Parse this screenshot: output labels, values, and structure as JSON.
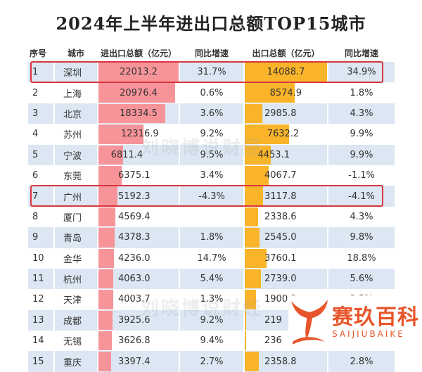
{
  "chart_data": {
    "type": "table",
    "title": "2024年上半年进出口总额TOP15城市",
    "columns": [
      "序号",
      "城市",
      "进出口总额（亿元）",
      "同比增速",
      "出口总额（亿元）",
      "同比增速"
    ],
    "rows": [
      [
        "1",
        "深圳",
        "22013.2",
        "31.7%",
        "14088.7",
        "34.9%"
      ],
      [
        "2",
        "上海",
        "20976.4",
        "0.6%",
        "8574.9",
        "1.8%"
      ],
      [
        "3",
        "北京",
        "18334.5",
        "3.6%",
        "2985.8",
        "4.3%"
      ],
      [
        "4",
        "苏州",
        "12316.9",
        "9.2%",
        "7632.2",
        "9.9%"
      ],
      [
        "5",
        "宁波",
        "6811.4",
        "9.5%",
        "4453.1",
        "9.9%"
      ],
      [
        "6",
        "东莞",
        "6375.1",
        "3.4%",
        "4067.7",
        "-1.1%"
      ],
      [
        "7",
        "广州",
        "5192.3",
        "-4.3%",
        "3117.8",
        "-4.1%"
      ],
      [
        "8",
        "厦门",
        "4569.4",
        "",
        "2338.6",
        "4.3%"
      ],
      [
        "9",
        "青岛",
        "4378.3",
        "1.8%",
        "2545.0",
        "9.8%"
      ],
      [
        "10",
        "金华",
        "4236.0",
        "14.7%",
        "3760.1",
        "18.8%"
      ],
      [
        "11",
        "杭州",
        "4063.0",
        "5.4%",
        "2739.0",
        "5.6%"
      ],
      [
        "12",
        "天津",
        "4003.7",
        "1.3%",
        "1900.3",
        "3.5%"
      ],
      [
        "13",
        "成都",
        "3925.6",
        "9.2%",
        "219",
        "9.2%"
      ],
      [
        "14",
        "无锡",
        "3626.8",
        "9.4%",
        "236",
        ""
      ],
      [
        "15",
        "重庆",
        "3397.4",
        "2.7%",
        "2358.8",
        "2.8%"
      ]
    ],
    "highlighted_rows": [
      "1",
      "7"
    ],
    "colors": {
      "total_bar": "#f7949a",
      "export_bar": "#f9b429",
      "row_alt": "#dce7f3",
      "highlight": "#d9363e"
    }
  },
  "watermark": "刘晓博说财经",
  "logo": {
    "cn": "赛玖百科",
    "en": "SAIJIUBAIKE"
  }
}
